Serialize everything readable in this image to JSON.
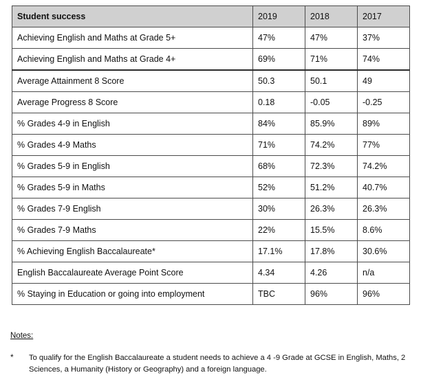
{
  "table": {
    "header": {
      "title": "Student success",
      "years": [
        "2019",
        "2018",
        "2017"
      ]
    },
    "rows": [
      {
        "label": "Achieving English and Maths at Grade 5+",
        "values": [
          "47%",
          "47%",
          "37%"
        ]
      },
      {
        "label": "Achieving English and Maths at Grade 4+",
        "values": [
          "69%",
          "71%",
          "74%"
        ]
      },
      {
        "label": "Average Attainment 8 Score",
        "values": [
          "50.3",
          "50.1",
          "49"
        ]
      },
      {
        "label": "Average Progress 8 Score",
        "values": [
          "0.18",
          "-0.05",
          "-0.25"
        ]
      },
      {
        "label": "% Grades 4-9 in English",
        "values": [
          "84%",
          "85.9%",
          "89%"
        ]
      },
      {
        "label": "% Grades 4-9 Maths",
        "values": [
          "71%",
          "74.2%",
          "77%"
        ]
      },
      {
        "label": "% Grades 5-9 in English",
        "values": [
          "68%",
          "72.3%",
          "74.2%"
        ]
      },
      {
        "label": "% Grades 5-9 in Maths",
        "values": [
          "52%",
          "51.2%",
          "40.7%"
        ]
      },
      {
        "label": "% Grades 7-9 English",
        "values": [
          "30%",
          "26.3%",
          "26.3%"
        ]
      },
      {
        "label": "% Grades 7-9 Maths",
        "values": [
          "22%",
          "15.5%",
          "8.6%"
        ]
      },
      {
        "label": "% Achieving English Baccalaureate*",
        "values": [
          "17.1%",
          "17.8%",
          "30.6%"
        ]
      },
      {
        "label": "English Baccalaureate Average Point Score",
        "values": [
          "4.34",
          "4.26",
          "n/a"
        ]
      },
      {
        "label": "% Staying in Education or going into employment",
        "values": [
          "TBC",
          "96%",
          "96%"
        ]
      }
    ]
  },
  "notes": {
    "heading": "Notes:",
    "footnote_marker": "*",
    "footnote_text": "To qualify for the English Baccalaureate a student needs to achieve a 4 -9 Grade at GCSE in English, Maths, 2 Sciences, a Humanity (History or Geography) and a foreign language."
  }
}
